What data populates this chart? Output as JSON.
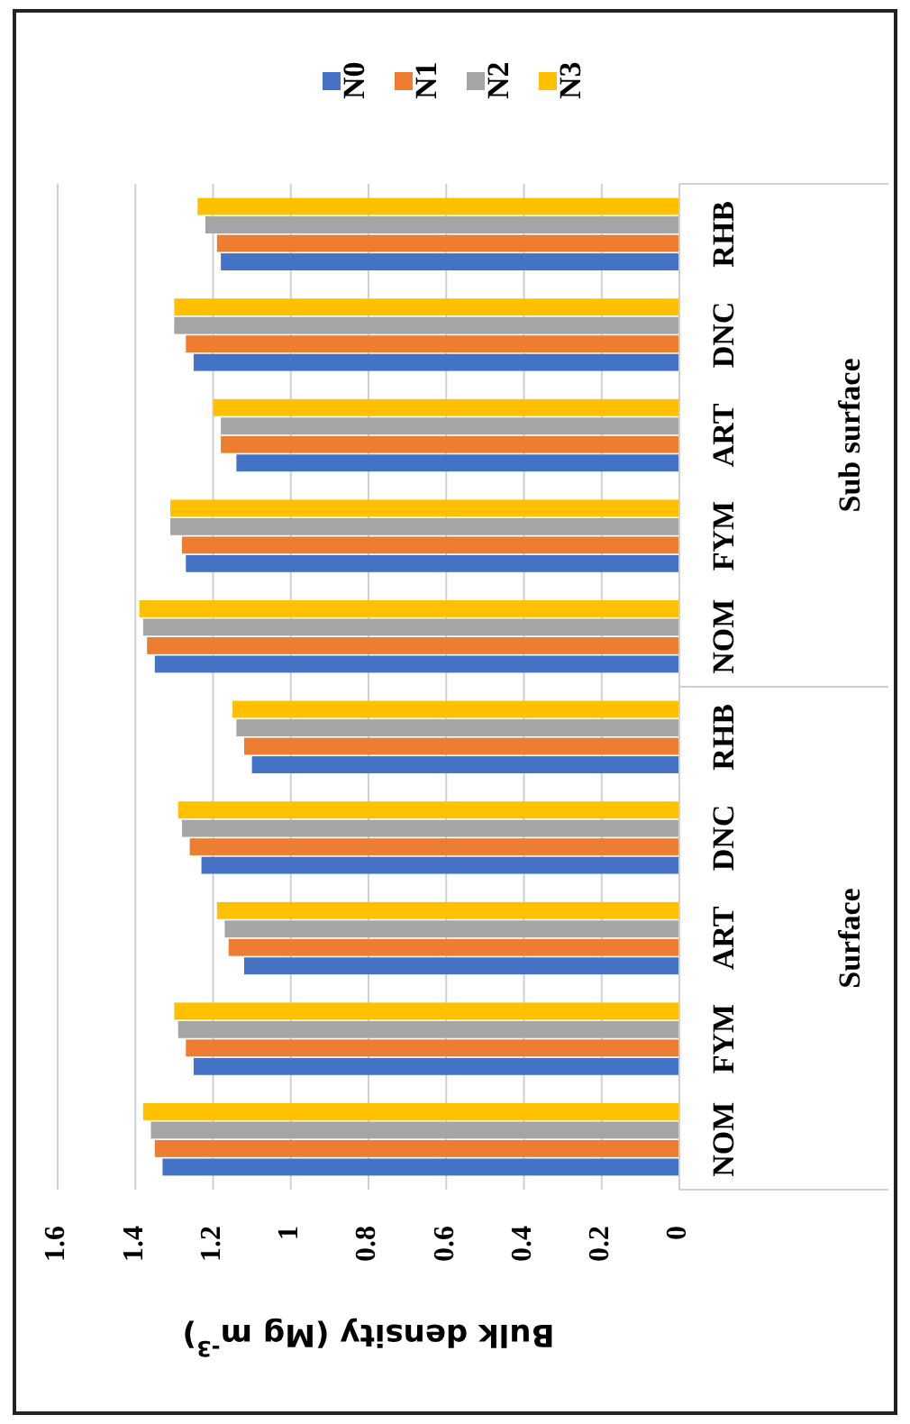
{
  "chart_data": {
    "type": "bar",
    "orientation": "horizontal",
    "xlabel": "Bulk density (Mg m$^{-3}$)",
    "categories": [
      "RHB",
      "DNC",
      "ART",
      "FYM",
      "NOM",
      "RHB",
      "DNC",
      "ART",
      "FYM",
      "NOM"
    ],
    "annotations": [
      "Sub surface",
      "Surface"
    ],
    "series": [
      {
        "name": "N0",
        "color": "#4472c4",
        "values": [
          1.18,
          1.25,
          1.14,
          1.27,
          1.35,
          1.1,
          1.23,
          1.12,
          1.25,
          1.33
        ]
      },
      {
        "name": "N1",
        "color": "#ed7d31",
        "values": [
          1.19,
          1.27,
          1.18,
          1.28,
          1.37,
          1.12,
          1.26,
          1.16,
          1.27,
          1.35
        ]
      },
      {
        "name": "N2",
        "color": "#a5a5a5",
        "values": [
          1.22,
          1.3,
          1.18,
          1.31,
          1.38,
          1.14,
          1.28,
          1.17,
          1.29,
          1.36
        ]
      },
      {
        "name": "N3",
        "color": "#ffc000",
        "values": [
          1.24,
          1.3,
          1.2,
          1.31,
          1.39,
          1.15,
          1.29,
          1.19,
          1.3,
          1.38
        ]
      }
    ],
    "xlim": [
      1.6,
      0
    ],
    "xticks": [
      1.6,
      1.4,
      1.2,
      1,
      0.8,
      0.6,
      0.4,
      0.2,
      0
    ],
    "grid": "x",
    "legend": "top"
  }
}
